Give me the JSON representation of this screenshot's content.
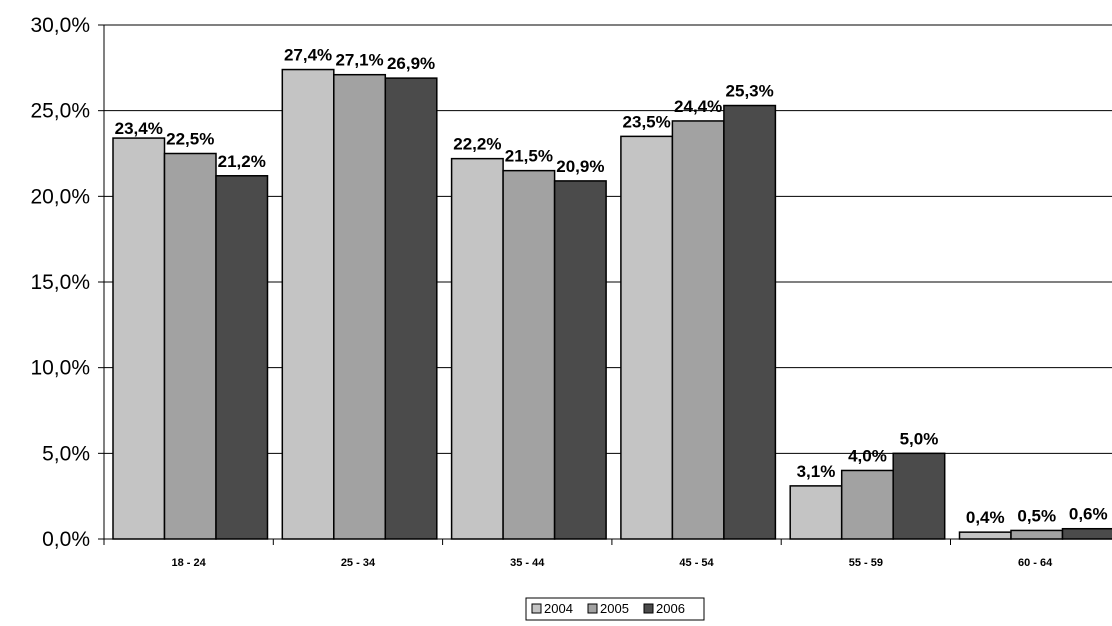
{
  "chart_data": {
    "type": "bar",
    "title": "",
    "xlabel": "",
    "ylabel": "",
    "ylim": [
      0,
      30
    ],
    "y_ticks": [
      "0,0%",
      "5,0%",
      "10,0%",
      "15,0%",
      "20,0%",
      "25,0%",
      "30,0%"
    ],
    "grid": "horizontal",
    "legend_position": "bottom-center",
    "categories": [
      "18 - 24",
      "25 - 34",
      "35 - 44",
      "45 - 54",
      "55 - 59",
      "60 - 64"
    ],
    "series": [
      {
        "name": "2004",
        "color": "#c4c4c4",
        "values": [
          23.4,
          27.4,
          22.2,
          23.5,
          3.1,
          0.4
        ],
        "labels": [
          "23,4%",
          "27,4%",
          "22,2%",
          "23,5%",
          "3,1%",
          "0,4%"
        ]
      },
      {
        "name": "2005",
        "color": "#a2a2a2",
        "values": [
          22.5,
          27.1,
          21.5,
          24.4,
          4.0,
          0.5
        ],
        "labels": [
          "22,5%",
          "27,1%",
          "21,5%",
          "24,4%",
          "4,0%",
          "0,5%"
        ]
      },
      {
        "name": "2006",
        "color": "#4b4b4b",
        "values": [
          21.2,
          26.9,
          20.9,
          25.3,
          5.0,
          0.6
        ],
        "labels": [
          "21,2%",
          "26,9%",
          "20,9%",
          "25,3%",
          "5,0%",
          "0,6%"
        ]
      }
    ]
  }
}
